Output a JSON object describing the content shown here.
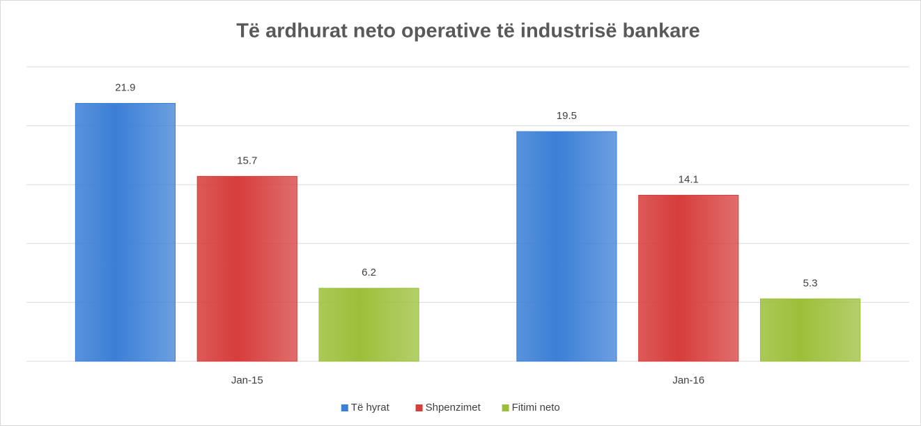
{
  "chart_data": {
    "type": "bar",
    "title": "Të ardhurat neto operative të industrisë bankare",
    "categories": [
      "Jan-15",
      "Jan-16"
    ],
    "series": [
      {
        "name": "Të hyrat",
        "color": "#3b7fd6",
        "values": [
          21.9,
          19.5
        ]
      },
      {
        "name": "Shpenzimet",
        "color": "#d63d3b",
        "values": [
          15.7,
          14.1
        ]
      },
      {
        "name": "Fitimi neto",
        "color": "#9cbf3a",
        "values": [
          6.2,
          5.3
        ]
      }
    ],
    "ylim": [
      0,
      25
    ],
    "yticks": [
      0,
      5,
      10,
      15,
      20,
      25
    ],
    "grid": true,
    "legend": "bottom"
  }
}
